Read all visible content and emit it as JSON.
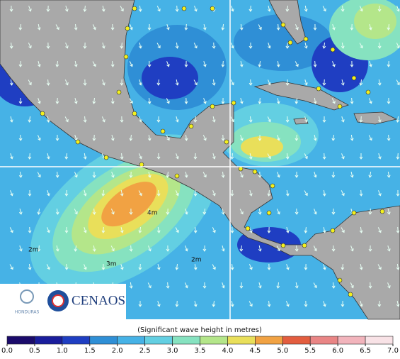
{
  "logo": {
    "country": "HONDURAS",
    "agency": "CENAOS"
  },
  "map": {
    "contour_labels": [
      "2m",
      "3m",
      "4m",
      "2m"
    ]
  },
  "colorbar": {
    "label": "(Significant wave height in metres)",
    "ticks": [
      {
        "value": 0,
        "label": "0.0"
      },
      {
        "value": 0.5,
        "label": "0.5"
      },
      {
        "value": 1,
        "label": "1.0"
      },
      {
        "value": 1.5,
        "label": "1.5"
      },
      {
        "value": 2,
        "label": "2.0"
      },
      {
        "value": 2.5,
        "label": "2.5"
      },
      {
        "value": 3,
        "label": "3.0"
      },
      {
        "value": 3.5,
        "label": "3.5"
      },
      {
        "value": 4,
        "label": "4.0"
      },
      {
        "value": 4.5,
        "label": "4.5"
      },
      {
        "value": 5,
        "label": "5.0"
      },
      {
        "value": 5.5,
        "label": "5.5"
      },
      {
        "value": 6,
        "label": "6.0"
      },
      {
        "value": 6.5,
        "label": "6.5"
      },
      {
        "value": 7,
        "label": "7.0"
      }
    ],
    "colors": [
      "#1b0b6b",
      "#1a1d9c",
      "#1f3ec2",
      "#2f8fd6",
      "#46b2e6",
      "#63cfe2",
      "#86e2c0",
      "#b4e68a",
      "#e9df5a",
      "#f1a243",
      "#e35d3f",
      "#e98585",
      "#f2b4bc",
      "#f8e2e6"
    ]
  }
}
